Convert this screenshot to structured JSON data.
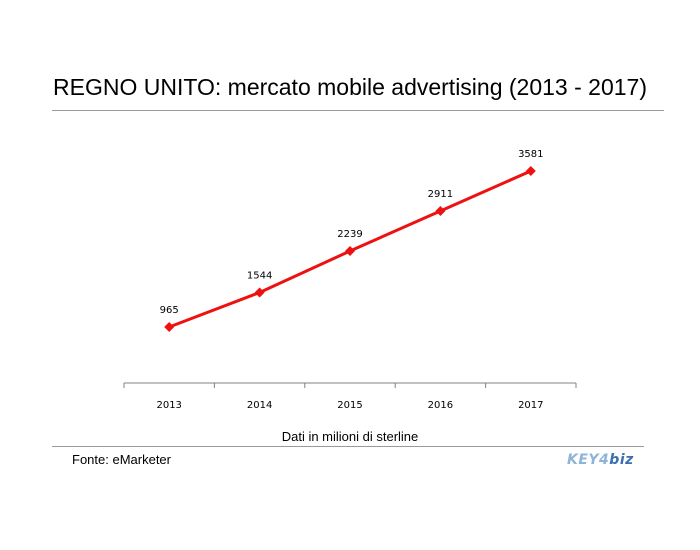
{
  "title": "REGNO UNITO: mercato mobile advertising (2013 - 2017)",
  "xlabel": "Dati in milioni di sterline",
  "source": "Fonte: eMarketer",
  "logo": {
    "part1": "KEY4",
    "part2": "biz"
  },
  "chart_data": {
    "type": "line",
    "title": "REGNO UNITO: mercato mobile advertising (2013 - 2017)",
    "xlabel": "Dati in milioni di sterline",
    "ylabel": "",
    "categories": [
      "2013",
      "2014",
      "2015",
      "2016",
      "2017"
    ],
    "series": [
      {
        "values": [
          965,
          1544,
          2239,
          2911,
          3581
        ],
        "color": "#ee1111"
      }
    ],
    "data_labels": [
      "965",
      "1544",
      "2239",
      "2911",
      "3581"
    ],
    "marker": "diamond",
    "grid": false,
    "legend": "none"
  }
}
